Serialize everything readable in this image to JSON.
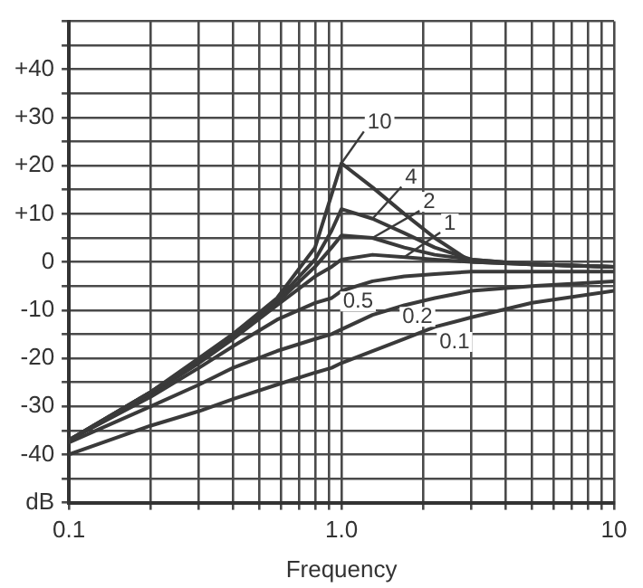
{
  "chart_data": {
    "type": "line",
    "xlabel": "Frequency",
    "x": [
      0.1,
      0.2,
      0.3,
      0.4,
      0.58,
      0.8,
      0.92,
      1,
      1.3,
      1.7,
      2.2,
      3,
      5,
      10
    ],
    "series": [
      {
        "name": "10",
        "color": "#3a3a3a",
        "values": [
          -37,
          -27,
          -20,
          -15,
          -7.5,
          3,
          14,
          20.5,
          15.5,
          10,
          5,
          0,
          -0.5,
          -1
        ]
      },
      {
        "name": "4",
        "color": "#3a3a3a",
        "values": [
          -37,
          -27,
          -20.5,
          -15,
          -8,
          0.5,
          6.5,
          11,
          9,
          6,
          3,
          0.5,
          -0.5,
          -1
        ]
      },
      {
        "name": "2",
        "color": "#3a3a3a",
        "values": [
          -37,
          -27,
          -20.5,
          -15.5,
          -8.5,
          -1,
          3,
          5.5,
          5,
          3,
          1.5,
          0.5,
          -0.5,
          -1
        ]
      },
      {
        "name": "1",
        "color": "#3a3a3a",
        "values": [
          -37,
          -27.5,
          -21,
          -16,
          -9,
          -3,
          -1,
          0.5,
          1.5,
          1,
          0.5,
          0,
          -0.5,
          -1
        ]
      },
      {
        "name": "0.5",
        "color": "#3a3a3a",
        "values": [
          -37,
          -28,
          -22,
          -17.5,
          -12,
          -8.5,
          -7.5,
          -6,
          -4,
          -3,
          -2.5,
          -2,
          -2,
          -2
        ]
      },
      {
        "name": "0.2",
        "color": "#3a3a3a",
        "values": [
          -37.5,
          -30,
          -25.5,
          -22,
          -18.5,
          -16,
          -15,
          -14,
          -11,
          -9,
          -7.5,
          -6,
          -5,
          -4
        ]
      },
      {
        "name": "0.1",
        "color": "#3a3a3a",
        "values": [
          -40,
          -34,
          -31,
          -28.5,
          -25.5,
          -23,
          -22,
          -21,
          -18.5,
          -16,
          -13.5,
          -11.5,
          -8.5,
          -6
        ]
      }
    ],
    "log": "x",
    "xlim": [
      0.1,
      10
    ],
    "xticks": [
      0.1,
      {
        "value": 0.2,
        "label": null
      },
      {
        "value": 0.3,
        "label": null
      },
      {
        "value": 0.4,
        "label": null
      },
      {
        "value": 0.5,
        "label": null
      },
      {
        "value": 0.6,
        "label": null
      },
      {
        "value": 0.7,
        "label": null
      },
      {
        "value": 0.8,
        "label": null
      },
      {
        "value": 0.9,
        "label": null
      },
      {
        "value": 1,
        "label": "1.0"
      },
      {
        "value": 2,
        "label": null
      },
      {
        "value": 3,
        "label": null
      },
      {
        "value": 4,
        "label": null
      },
      {
        "value": 5,
        "label": null
      },
      {
        "value": 6,
        "label": null
      },
      {
        "value": 7,
        "label": null
      },
      {
        "value": 8,
        "label": null
      },
      {
        "value": 9,
        "label": null
      },
      10
    ],
    "ylim": [
      -50,
      50
    ],
    "yticks": [
      {
        "value": -50,
        "label": "dB"
      },
      {
        "value": -45,
        "label": null
      },
      {
        "value": -40,
        "label": "-40"
      },
      {
        "value": -35,
        "label": null
      },
      {
        "value": -30,
        "label": "-30"
      },
      {
        "value": -25,
        "label": null
      },
      {
        "value": -20,
        "label": "-20"
      },
      {
        "value": -15,
        "label": null
      },
      {
        "value": -10,
        "label": "-10"
      },
      {
        "value": -5,
        "label": null
      },
      0,
      {
        "value": 5,
        "label": null
      },
      {
        "value": 10,
        "label": "+10"
      },
      {
        "value": 15,
        "label": null
      },
      {
        "value": 20,
        "label": "+20"
      },
      {
        "value": 25,
        "label": null
      },
      {
        "value": 30,
        "label": "+30"
      },
      {
        "value": 35,
        "label": null
      },
      {
        "value": 40,
        "label": "+40"
      },
      {
        "value": 45,
        "label": null
      },
      {
        "value": 50,
        "label": null
      }
    ],
    "grid": true,
    "legend": false,
    "marker": "none",
    "line_style": "solid"
  }
}
